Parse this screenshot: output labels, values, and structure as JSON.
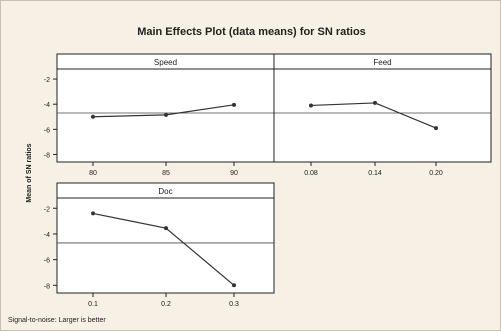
{
  "chart_data": {
    "type": "line",
    "title": "Main Effects Plot (data means) for SN ratios",
    "ylabel": "Mean of SN ratios",
    "ylim": [
      -8.6,
      -1.2
    ],
    "yticks": [
      -2,
      -4,
      -6,
      -8
    ],
    "reference_line": -4.7,
    "footnote": "Signal-to-noise: Larger is better",
    "colors": {
      "background": "#f7f0e4",
      "plot": "#ffffff",
      "line": "#333333"
    },
    "panels": [
      {
        "name": "Speed",
        "categories": [
          "80",
          "85",
          "90"
        ],
        "values": [
          -5.0,
          -4.85,
          -4.05
        ]
      },
      {
        "name": "Feed",
        "categories": [
          "0.08",
          "0.14",
          "0.20"
        ],
        "values": [
          -4.1,
          -3.9,
          -5.9
        ]
      },
      {
        "name": "Doc",
        "categories": [
          "0.1",
          "0.2",
          "0.3"
        ],
        "values": [
          -2.4,
          -3.55,
          -8.0
        ]
      }
    ]
  }
}
